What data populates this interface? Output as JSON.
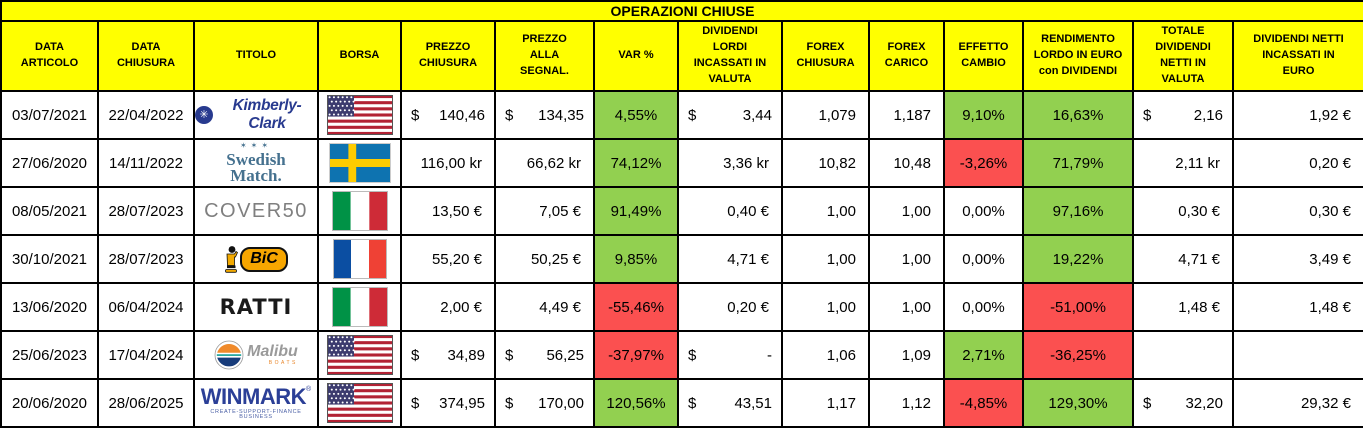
{
  "title": "OPERAZIONI CHIUSE",
  "columns": [
    "DATA\nARTICOLO",
    "DATA\nCHIUSURA",
    "TITOLO",
    "BORSA",
    "PREZZO\nCHIUSURA",
    "PREZZO\nALLA\nSEGNAL.",
    "VAR %",
    "DIVIDENDI\nLORDI\nINCASSATI IN\nVALUTA",
    "FOREX\nCHIUSURA",
    "FOREX\nCARICO",
    "EFFETTO\nCAMBIO",
    "RENDIMENTO\nLORDO IN EURO\ncon DIVIDENDI",
    "TOTALE\nDIVIDENDI\nNETTI IN\nVALUTA",
    "DIVIDENDI NETTI\nINCASSATI IN\nEURO"
  ],
  "colors": {
    "header_bg": "#FFFF00",
    "positive_bg": "#92D050",
    "negative_bg": "#FB5050",
    "border": "#000000",
    "text": "#000000"
  },
  "logos": {
    "kimberly": {
      "name": "Kimberly-Clark",
      "emblem": "✳"
    },
    "swedish": {
      "stars": "✶✶✶",
      "line1": "Swedish",
      "line2": "Match."
    },
    "cover50": {
      "name": "COVER50"
    },
    "bic": {
      "name": "BiC"
    },
    "ratti": {
      "name": "RATTI"
    },
    "malibu": {
      "name": "Malibu",
      "tagline": "BOATS"
    },
    "winmark": {
      "name": "WINMARK",
      "reg": "®",
      "tagline": "CREATE-SUPPORT-FINANCE BUSINESS"
    }
  },
  "rows": [
    {
      "data_articolo": "03/07/2021",
      "data_chiusura": "22/04/2022",
      "titolo": "kimberly",
      "borsa": "us",
      "prezzo_chiusura": {
        "pre": "$",
        "val": "140,46"
      },
      "prezzo_segnal": {
        "pre": "$",
        "val": "134,35"
      },
      "var_pct": {
        "val": "4,55%",
        "bg": "green"
      },
      "dividendi_lordi": {
        "pre": "$",
        "val": "3,44"
      },
      "forex_chiusura": "1,079",
      "forex_carico": "1,187",
      "effetto_cambio": {
        "val": "9,10%",
        "bg": "green"
      },
      "rendimento": {
        "val": "16,63%",
        "bg": "green"
      },
      "tot_dividendi": {
        "pre": "$",
        "val": "2,16"
      },
      "dividendi_euro": "1,92 €"
    },
    {
      "data_articolo": "27/06/2020",
      "data_chiusura": "14/11/2022",
      "titolo": "swedish",
      "borsa": "se",
      "prezzo_chiusura": "116,00 kr",
      "prezzo_segnal": "66,62 kr",
      "var_pct": {
        "val": "74,12%",
        "bg": "green"
      },
      "dividendi_lordi": "3,36 kr",
      "forex_chiusura": "10,82",
      "forex_carico": "10,48",
      "effetto_cambio": {
        "val": "-3,26%",
        "bg": "red"
      },
      "rendimento": {
        "val": "71,79%",
        "bg": "green"
      },
      "tot_dividendi": "2,11 kr",
      "dividendi_euro": "0,20 €"
    },
    {
      "data_articolo": "08/05/2021",
      "data_chiusura": "28/07/2023",
      "titolo": "cover50",
      "borsa": "it",
      "prezzo_chiusura": "13,50 €",
      "prezzo_segnal": "7,05 €",
      "var_pct": {
        "val": "91,49%",
        "bg": "green"
      },
      "dividendi_lordi": "0,40 €",
      "forex_chiusura": "1,00",
      "forex_carico": "1,00",
      "effetto_cambio": {
        "val": "0,00%",
        "bg": null
      },
      "rendimento": {
        "val": "97,16%",
        "bg": "green"
      },
      "tot_dividendi": "0,30 €",
      "dividendi_euro": "0,30 €"
    },
    {
      "data_articolo": "30/10/2021",
      "data_chiusura": "28/07/2023",
      "titolo": "bic",
      "borsa": "fr",
      "prezzo_chiusura": "55,20 €",
      "prezzo_segnal": "50,25 €",
      "var_pct": {
        "val": "9,85%",
        "bg": "green"
      },
      "dividendi_lordi": "4,71 €",
      "forex_chiusura": "1,00",
      "forex_carico": "1,00",
      "effetto_cambio": {
        "val": "0,00%",
        "bg": null
      },
      "rendimento": {
        "val": "19,22%",
        "bg": "green"
      },
      "tot_dividendi": "4,71 €",
      "dividendi_euro": "3,49 €"
    },
    {
      "data_articolo": "13/06/2020",
      "data_chiusura": "06/04/2024",
      "titolo": "ratti",
      "borsa": "it",
      "prezzo_chiusura": "2,00 €",
      "prezzo_segnal": "4,49 €",
      "var_pct": {
        "val": "-55,46%",
        "bg": "red"
      },
      "dividendi_lordi": "0,20 €",
      "forex_chiusura": "1,00",
      "forex_carico": "1,00",
      "effetto_cambio": {
        "val": "0,00%",
        "bg": null
      },
      "rendimento": {
        "val": "-51,00%",
        "bg": "red"
      },
      "tot_dividendi": "1,48 €",
      "dividendi_euro": "1,48 €"
    },
    {
      "data_articolo": "25/06/2023",
      "data_chiusura": "17/04/2024",
      "titolo": "malibu",
      "borsa": "us",
      "prezzo_chiusura": {
        "pre": "$",
        "val": "34,89"
      },
      "prezzo_segnal": {
        "pre": "$",
        "val": "56,25"
      },
      "var_pct": {
        "val": "-37,97%",
        "bg": "red"
      },
      "dividendi_lordi": {
        "pre": "$",
        "val": "-"
      },
      "forex_chiusura": "1,06",
      "forex_carico": "1,09",
      "effetto_cambio": {
        "val": "2,71%",
        "bg": "green"
      },
      "rendimento": {
        "val": "-36,25%",
        "bg": "red"
      },
      "tot_dividendi": "",
      "dividendi_euro": ""
    },
    {
      "data_articolo": "20/06/2020",
      "data_chiusura": "28/06/2025",
      "titolo": "winmark",
      "borsa": "us",
      "prezzo_chiusura": {
        "pre": "$",
        "val": "374,95"
      },
      "prezzo_segnal": {
        "pre": "$",
        "val": "170,00"
      },
      "var_pct": {
        "val": "120,56%",
        "bg": "green"
      },
      "dividendi_lordi": {
        "pre": "$",
        "val": "43,51"
      },
      "forex_chiusura": "1,17",
      "forex_carico": "1,12",
      "effetto_cambio": {
        "val": "-4,85%",
        "bg": "red"
      },
      "rendimento": {
        "val": "129,30%",
        "bg": "green"
      },
      "tot_dividendi": {
        "pre": "$",
        "val": "32,20"
      },
      "dividendi_euro": "29,32 €"
    }
  ]
}
